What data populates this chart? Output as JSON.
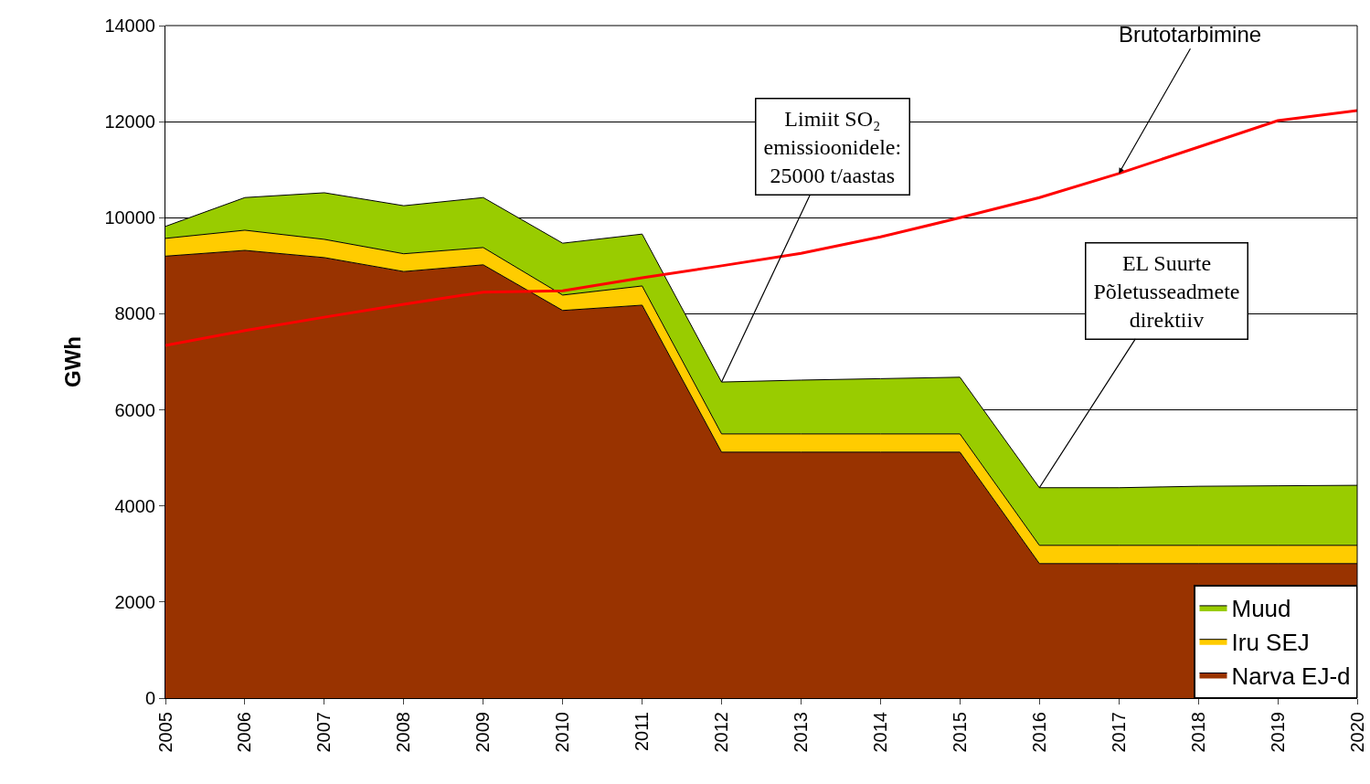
{
  "chart_data": {
    "type": "area",
    "stacked": true,
    "ylabel": "GWh",
    "x": [
      2005,
      2006,
      2007,
      2008,
      2009,
      2010,
      2011,
      2012,
      2013,
      2014,
      2015,
      2016,
      2017,
      2018,
      2019,
      2020
    ],
    "series": [
      {
        "name": "Narva EJ-d",
        "color": "#993300",
        "values": [
          9200,
          9320,
          9170,
          8880,
          9020,
          8070,
          8180,
          5120,
          5120,
          5120,
          5120,
          2800,
          2800,
          2800,
          2800,
          2800
        ]
      },
      {
        "name": "Iru SEJ",
        "color": "#ffcc00",
        "values": [
          370,
          420,
          380,
          370,
          360,
          320,
          400,
          380,
          380,
          380,
          380,
          380,
          380,
          380,
          380,
          380
        ]
      },
      {
        "name": "Muud",
        "color": "#99cc00",
        "values": [
          250,
          680,
          970,
          1000,
          1040,
          1080,
          1080,
          1080,
          1120,
          1150,
          1180,
          1200,
          1200,
          1230,
          1240,
          1250
        ]
      },
      {
        "name": "Brutotarbimine",
        "type": "line",
        "color": "#ff0000",
        "values": [
          7340,
          7650,
          7930,
          8200,
          8450,
          8480,
          8750,
          9000,
          9260,
          9600,
          10000,
          10420,
          10920,
          11470,
          12020,
          12230
        ]
      }
    ],
    "annotations": [
      {
        "text": "Limiit SO₂\nemissioonidele:\n25000 t/aastas",
        "x": 2012,
        "y": 6580
      },
      {
        "text": "EL Suurte\nPõletusseadmete\ndirektiiv",
        "x": 2016,
        "y": 4380
      }
    ],
    "xlim": [
      2005,
      2020
    ],
    "xticks": [
      2005,
      2006,
      2007,
      2008,
      2009,
      2010,
      2011,
      2012,
      2013,
      2014,
      2015,
      2016,
      2017,
      2018,
      2019,
      2020
    ],
    "ylim": [
      0,
      14000
    ],
    "yticks": [
      0,
      2000,
      4000,
      6000,
      8000,
      10000,
      12000,
      14000
    ],
    "grid": "y",
    "legend": "bottom right",
    "marker": "none",
    "line_style": "solid"
  }
}
